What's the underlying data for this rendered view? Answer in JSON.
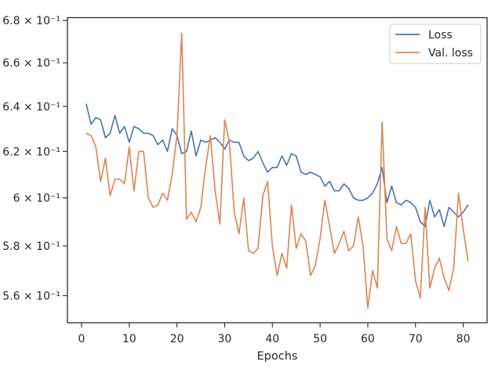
{
  "chart_data": {
    "type": "line",
    "xlabel": "Epochs",
    "ylabel": "",
    "title": "",
    "yscale": "log",
    "xlim": [
      -2.95,
      85
    ],
    "ylim": [
      0.5494,
      0.6814
    ],
    "grid": false,
    "legend_position": "top-right",
    "x_ticks": [
      0,
      10,
      20,
      30,
      40,
      50,
      60,
      70,
      80
    ],
    "y_ticks": [
      {
        "value": 0.56,
        "label": "5.6 × 10⁻¹"
      },
      {
        "value": 0.58,
        "label": "5.8 × 10⁻¹"
      },
      {
        "value": 0.6,
        "label": "6 × 10⁻¹"
      },
      {
        "value": 0.62,
        "label": "6.2 × 10⁻¹"
      },
      {
        "value": 0.64,
        "label": "6.4 × 10⁻¹"
      },
      {
        "value": 0.66,
        "label": "6.6 × 10⁻¹"
      },
      {
        "value": 0.68,
        "label": "6.8 × 10⁻¹"
      }
    ],
    "x": [
      1,
      2,
      3,
      4,
      5,
      6,
      7,
      8,
      9,
      10,
      11,
      12,
      13,
      14,
      15,
      16,
      17,
      18,
      19,
      20,
      21,
      22,
      23,
      24,
      25,
      26,
      27,
      28,
      29,
      30,
      31,
      32,
      33,
      34,
      35,
      36,
      37,
      38,
      39,
      40,
      41,
      42,
      43,
      44,
      45,
      46,
      47,
      48,
      49,
      50,
      51,
      52,
      53,
      54,
      55,
      56,
      57,
      58,
      59,
      60,
      61,
      62,
      63,
      64,
      65,
      66,
      67,
      68,
      69,
      70,
      71,
      72,
      73,
      74,
      75,
      76,
      77,
      78,
      79,
      80,
      81
    ],
    "series": [
      {
        "name": "Loss",
        "color": "#4c72b0",
        "values": [
          0.641,
          0.632,
          0.635,
          0.634,
          0.626,
          0.628,
          0.636,
          0.628,
          0.631,
          0.624,
          0.631,
          0.63,
          0.628,
          0.628,
          0.627,
          0.623,
          0.625,
          0.62,
          0.63,
          0.627,
          0.619,
          0.62,
          0.629,
          0.618,
          0.625,
          0.624,
          0.625,
          0.626,
          0.624,
          0.621,
          0.625,
          0.624,
          0.624,
          0.618,
          0.616,
          0.617,
          0.62,
          0.615,
          0.611,
          0.613,
          0.613,
          0.618,
          0.614,
          0.619,
          0.618,
          0.611,
          0.61,
          0.611,
          0.61,
          0.609,
          0.605,
          0.607,
          0.603,
          0.603,
          0.606,
          0.604,
          0.6,
          0.599,
          0.599,
          0.6,
          0.602,
          0.606,
          0.613,
          0.598,
          0.605,
          0.598,
          0.597,
          0.599,
          0.598,
          0.596,
          0.59,
          0.588,
          0.599,
          0.592,
          0.595,
          0.588,
          0.596,
          0.594,
          0.592,
          0.594,
          0.597
        ]
      },
      {
        "name": "Val. loss",
        "color": "#dd8452",
        "values": [
          0.628,
          0.627,
          0.622,
          0.607,
          0.617,
          0.601,
          0.608,
          0.608,
          0.606,
          0.622,
          0.603,
          0.62,
          0.62,
          0.6,
          0.596,
          0.597,
          0.602,
          0.599,
          0.61,
          0.627,
          0.674,
          0.591,
          0.594,
          0.59,
          0.596,
          0.613,
          0.627,
          0.603,
          0.589,
          0.634,
          0.624,
          0.594,
          0.585,
          0.6,
          0.578,
          0.577,
          0.579,
          0.601,
          0.607,
          0.58,
          0.568,
          0.577,
          0.571,
          0.597,
          0.579,
          0.585,
          0.582,
          0.568,
          0.572,
          0.583,
          0.599,
          0.588,
          0.577,
          0.581,
          0.586,
          0.578,
          0.58,
          0.592,
          0.58,
          0.555,
          0.57,
          0.563,
          0.633,
          0.583,
          0.578,
          0.588,
          0.581,
          0.581,
          0.585,
          0.566,
          0.559,
          0.596,
          0.563,
          0.571,
          0.575,
          0.567,
          0.562,
          0.571,
          0.602,
          0.587,
          0.574
        ]
      }
    ]
  }
}
